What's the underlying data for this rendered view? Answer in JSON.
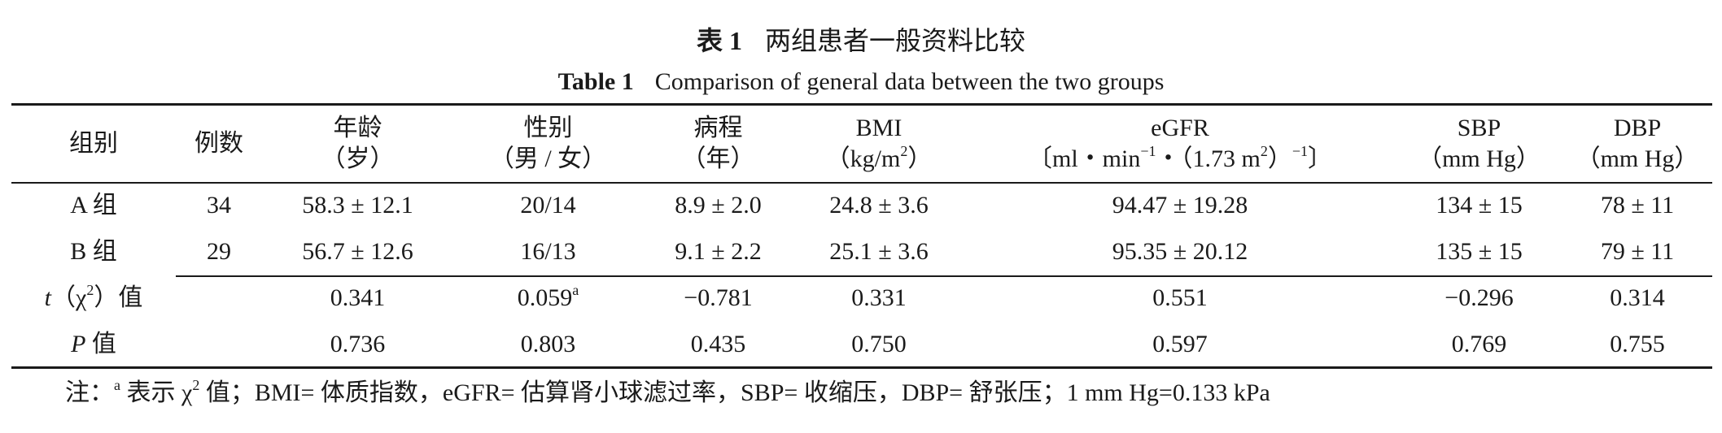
{
  "title": {
    "cn_number": "表 1",
    "cn_text": "两组患者一般资料比较",
    "en_number": "Table 1",
    "en_text": "Comparison of general data between the two groups"
  },
  "headers": [
    {
      "l1": "组别",
      "l2": ""
    },
    {
      "l1": "例数",
      "l2": ""
    },
    {
      "l1": "年龄",
      "l2": "（岁）"
    },
    {
      "l1": "性别",
      "l2": "（男 / 女）"
    },
    {
      "l1": "病程",
      "l2": "（年）"
    },
    {
      "l1": "BMI",
      "l2_pre": "（kg/m",
      "l2_sup": "2",
      "l2_post": "）"
    },
    {
      "l1": "eGFR",
      "l2_a": "〔ml・min",
      "l2_sup1": "−1",
      "l2_b": "・（1.73 m",
      "l2_sup2": "2",
      "l2_c": "）",
      "l2_sup3": "−1",
      "l2_d": "〕"
    },
    {
      "l1": "SBP",
      "l2": "（mm Hg）"
    },
    {
      "l1": "DBP",
      "l2": "（mm Hg）"
    }
  ],
  "rows": [
    {
      "group": "A 组",
      "n": "34",
      "age": "58.3 ± 12.1",
      "sex": "20/14",
      "course": "8.9 ± 2.0",
      "bmi": "24.8 ± 3.6",
      "egfr": "94.47 ± 19.28",
      "sbp": "134 ± 15",
      "dbp": "78 ± 11"
    },
    {
      "group": "B 组",
      "n": "29",
      "age": "56.7 ± 12.6",
      "sex": "16/13",
      "course": "9.1 ± 2.2",
      "bmi": "25.1 ± 3.6",
      "egfr": "95.35 ± 20.12",
      "sbp": "135 ± 15",
      "dbp": "79 ± 11"
    }
  ],
  "stat_rows": [
    {
      "label_ital": "t",
      "label_a": "（χ",
      "label_sup": "2",
      "label_b": "）值",
      "age": "0.341",
      "sex": "0.059",
      "sex_sup": "a",
      "course": "−0.781",
      "bmi": "0.331",
      "egfr": "0.551",
      "sbp": "−0.296",
      "dbp": "0.314"
    },
    {
      "label_ital": "P",
      "label_b": " 值",
      "age": "0.736",
      "sex": "0.803",
      "course": "0.435",
      "bmi": "0.750",
      "egfr": "0.597",
      "sbp": "0.769",
      "dbp": "0.755"
    }
  ],
  "footnote": {
    "prefix": "注：",
    "sup_a": "a",
    "part1": " 表示 χ",
    "sup2": "2",
    "part2": " 值；BMI= 体质指数，eGFR= 估算肾小球滤过率，SBP= 收缩压，DBP= 舒张压；1 mm Hg=0.133 kPa"
  }
}
